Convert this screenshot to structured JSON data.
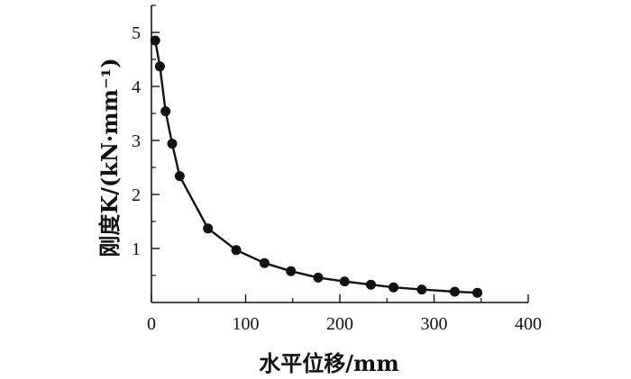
{
  "chart_data": {
    "type": "scatter",
    "title": "",
    "xlabel": "水平位移/mm",
    "ylabel": "刚度K/(kN·mm⁻¹)",
    "xlim": [
      0,
      400
    ],
    "ylim": [
      0,
      5.5
    ],
    "x_ticks": [
      "0",
      "100",
      "200",
      "300",
      "400"
    ],
    "y_ticks": [
      "1",
      "2",
      "3",
      "4",
      "5"
    ],
    "grid": false,
    "legend": "none",
    "series": [
      {
        "points": [
          {
            "x": 4,
            "y": 4.85
          },
          {
            "x": 9,
            "y": 4.37
          },
          {
            "x": 15,
            "y": 3.54
          },
          {
            "x": 22,
            "y": 2.94
          },
          {
            "x": 30,
            "y": 2.34
          },
          {
            "x": 60,
            "y": 1.37
          },
          {
            "x": 90,
            "y": 0.97
          },
          {
            "x": 120,
            "y": 0.73
          },
          {
            "x": 148,
            "y": 0.58
          },
          {
            "x": 177,
            "y": 0.46
          },
          {
            "x": 205,
            "y": 0.39
          },
          {
            "x": 233,
            "y": 0.33
          },
          {
            "x": 257,
            "y": 0.28
          },
          {
            "x": 287,
            "y": 0.24
          },
          {
            "x": 322,
            "y": 0.2
          },
          {
            "x": 346,
            "y": 0.18
          }
        ]
      }
    ],
    "colors": {
      "axis": "#111111",
      "marker": "#111111",
      "line": "#111111"
    }
  }
}
